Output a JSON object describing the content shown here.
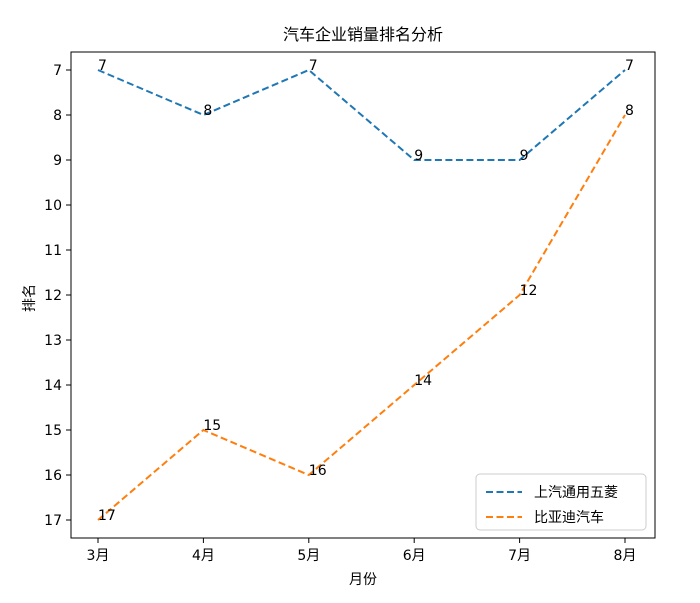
{
  "chart_data": {
    "type": "line",
    "title": "汽车企业销量排名分析",
    "xlabel": "月份",
    "ylabel": "排名",
    "categories": [
      "3月",
      "4月",
      "5月",
      "6月",
      "7月",
      "8月"
    ],
    "y_inverted": true,
    "ylim": [
      6.6,
      17.4
    ],
    "yticks": [
      7,
      8,
      9,
      10,
      11,
      12,
      13,
      14,
      15,
      16,
      17
    ],
    "grid": false,
    "legend_position": "lower-right",
    "line_style": "dashed",
    "series": [
      {
        "name": "上汽通用五菱",
        "color": "#1f77b4",
        "values": [
          7,
          8,
          7,
          9,
          9,
          7
        ]
      },
      {
        "name": "比亚迪汽车",
        "color": "#ff7f0e",
        "values": [
          17,
          15,
          16,
          14,
          12,
          8
        ]
      }
    ]
  }
}
